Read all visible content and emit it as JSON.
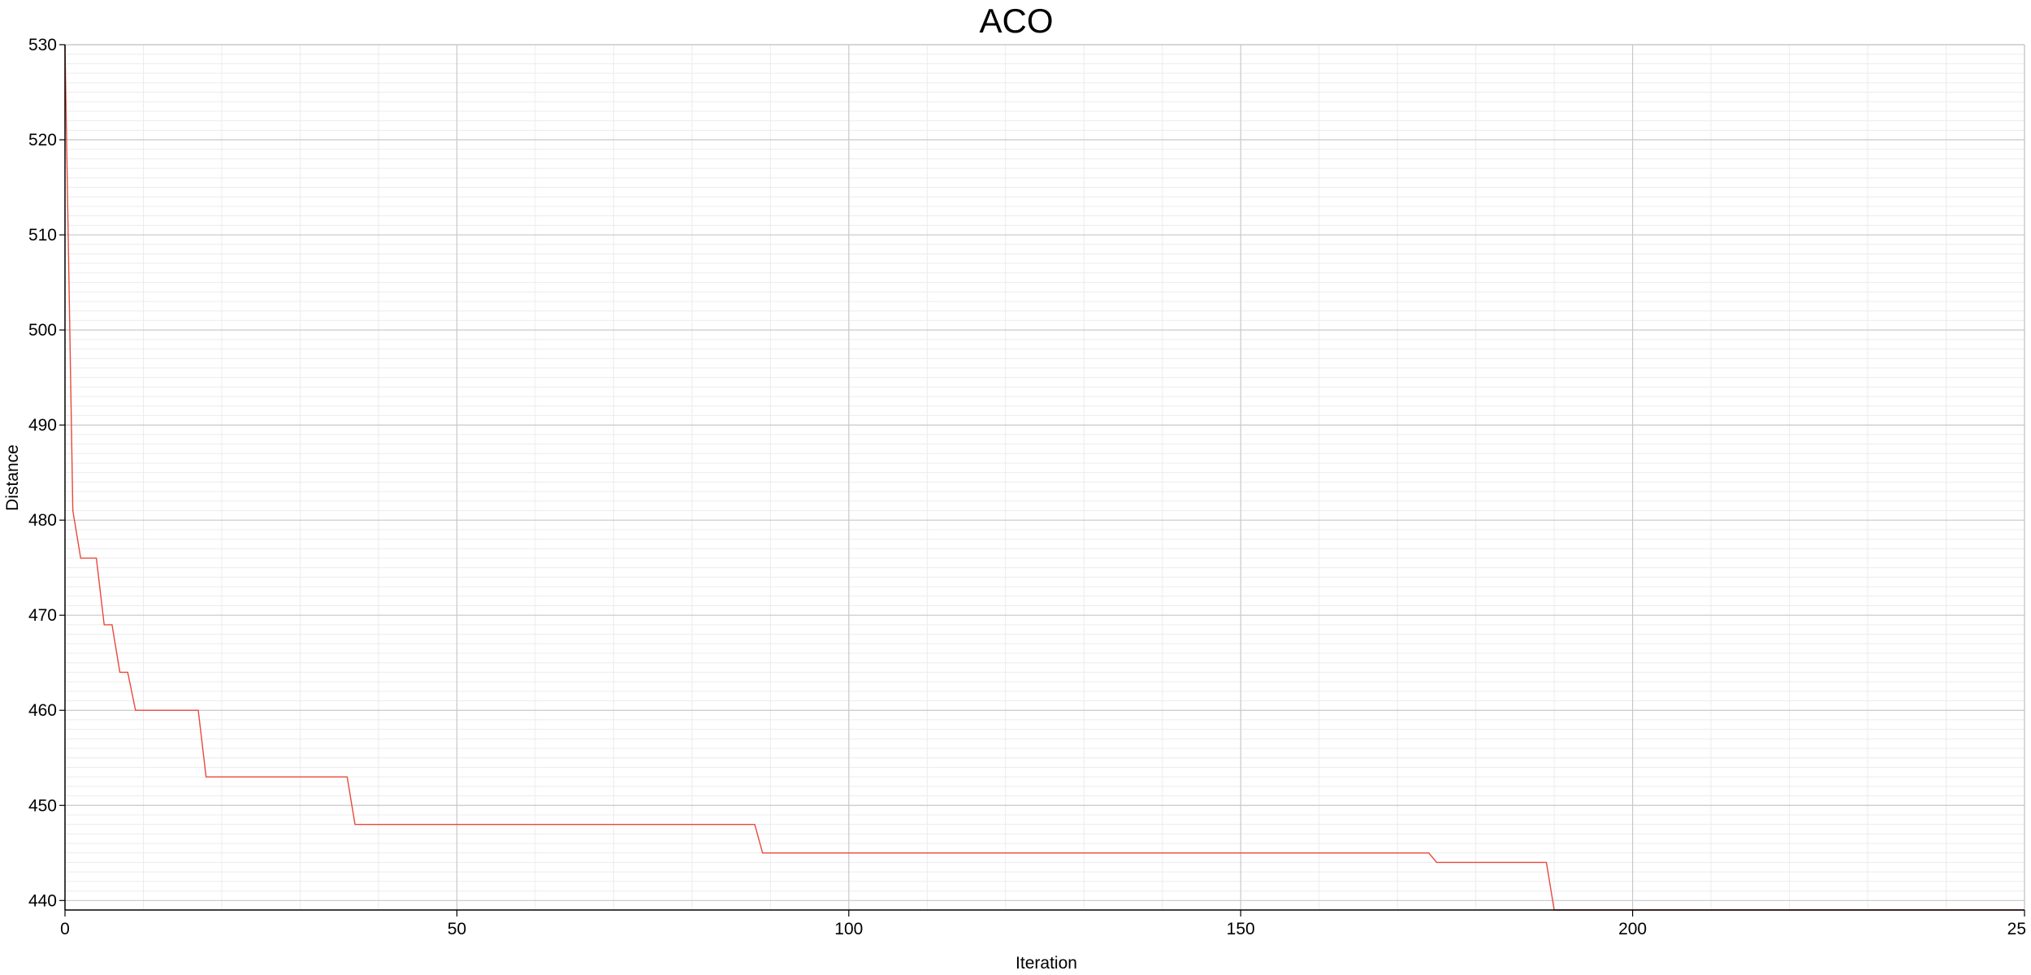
{
  "chart_data": {
    "type": "line",
    "title": "ACO",
    "xlabel": "Iteration",
    "ylabel": "Distance",
    "xlim": [
      0,
      250
    ],
    "ylim": [
      439,
      530
    ],
    "x_ticks": [
      "0",
      "50",
      "100",
      "150",
      "200",
      "25"
    ],
    "y_ticks": [
      "440",
      "450",
      "460",
      "470",
      "480",
      "490",
      "500",
      "510",
      "520",
      "530"
    ],
    "grid": true,
    "series": [
      {
        "color": "#e8483a",
        "points": [
          [
            0,
            530
          ],
          [
            1,
            481
          ],
          [
            2,
            476
          ],
          [
            4,
            476
          ],
          [
            5,
            469
          ],
          [
            6,
            469
          ],
          [
            7,
            464
          ],
          [
            8,
            464
          ],
          [
            9,
            460
          ],
          [
            17,
            460
          ],
          [
            18,
            453
          ],
          [
            36,
            453
          ],
          [
            37,
            448
          ],
          [
            88,
            448
          ],
          [
            89,
            445
          ],
          [
            174,
            445
          ],
          [
            175,
            444
          ],
          [
            189,
            444
          ],
          [
            190,
            439
          ],
          [
            250,
            439
          ]
        ]
      }
    ]
  }
}
